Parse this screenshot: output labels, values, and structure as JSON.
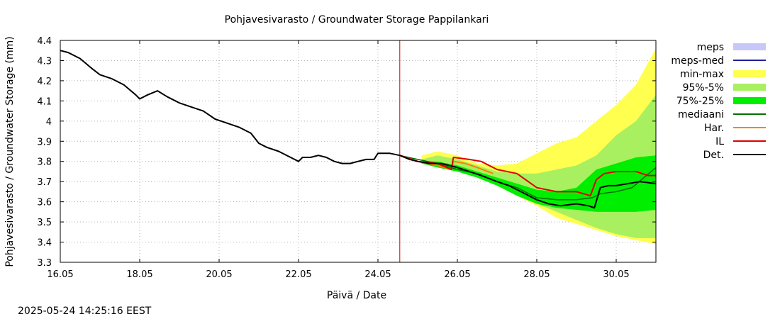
{
  "chart_data": {
    "type": "area",
    "title": "Pohjavesivarasto / Groundwater Storage   Pappilankari",
    "xlabel": "Päivä / Date",
    "ylabel": "Pohjavesivarasto / Groundwater Storage (mm)",
    "timestamp": "2025-05-24 14:25:16 EEST",
    "xlim": [
      16.0,
      31.0
    ],
    "ylim": [
      3.3,
      4.4
    ],
    "x_ticks": [
      {
        "value": 16,
        "label": "16.05"
      },
      {
        "value": 18,
        "label": "18.05"
      },
      {
        "value": 20,
        "label": "20.05"
      },
      {
        "value": 22,
        "label": "22.05"
      },
      {
        "value": 24,
        "label": "24.05"
      },
      {
        "value": 26,
        "label": "26.05"
      },
      {
        "value": 28,
        "label": "28.05"
      },
      {
        "value": 30,
        "label": "30.05"
      }
    ],
    "y_ticks": [
      {
        "value": 3.3,
        "label": "3.3"
      },
      {
        "value": 3.4,
        "label": "3.4"
      },
      {
        "value": 3.5,
        "label": "3.5"
      },
      {
        "value": 3.6,
        "label": "3.6"
      },
      {
        "value": 3.7,
        "label": "3.7"
      },
      {
        "value": 3.8,
        "label": "3.8"
      },
      {
        "value": 3.9,
        "label": "3.9"
      },
      {
        "value": 4.0,
        "label": "4"
      },
      {
        "value": 4.1,
        "label": "4.1"
      },
      {
        "value": 4.2,
        "label": "4.2"
      },
      {
        "value": 4.3,
        "label": "4.3"
      },
      {
        "value": 4.4,
        "label": "4.4"
      }
    ],
    "now_marker": {
      "x": 24.55,
      "color": "#cc0000"
    },
    "grid": true,
    "legend_position": "right",
    "legend": [
      {
        "name": "meps",
        "kind": "box",
        "color": "#c8c8f8"
      },
      {
        "name": "meps-med",
        "kind": "line",
        "color": "#2020a0"
      },
      {
        "name": "min-max",
        "kind": "box",
        "color": "#ffff50"
      },
      {
        "name": "95%-5%",
        "kind": "box",
        "color": "#a8f060"
      },
      {
        "name": "75%-25%",
        "kind": "box",
        "color": "#00ee00"
      },
      {
        "name": "mediaani",
        "kind": "line",
        "color": "#007000"
      },
      {
        "name": "Har.",
        "kind": "line",
        "color": "#ff8000"
      },
      {
        "name": "IL",
        "kind": "line",
        "color": "#e00000"
      },
      {
        "name": "Det.",
        "kind": "line",
        "color": "#000000"
      }
    ],
    "bands": [
      {
        "name": "min-max",
        "color": "#ffff50",
        "x": [
          25.1,
          25.5,
          26.0,
          26.5,
          27.0,
          27.5,
          28.0,
          28.5,
          29.0,
          29.5,
          30.0,
          30.5,
          31.0
        ],
        "upper": [
          3.83,
          3.85,
          3.83,
          3.79,
          3.78,
          3.79,
          3.84,
          3.89,
          3.92,
          4.0,
          4.08,
          4.18,
          4.36
        ],
        "lower": [
          3.79,
          3.77,
          3.75,
          3.72,
          3.68,
          3.63,
          3.58,
          3.52,
          3.49,
          3.46,
          3.43,
          3.41,
          3.39
        ]
      },
      {
        "name": "95%-5%",
        "color": "#a8f060",
        "x": [
          25.1,
          25.5,
          26.0,
          26.5,
          27.0,
          27.5,
          28.0,
          28.5,
          29.0,
          29.5,
          30.0,
          30.5,
          31.0
        ],
        "upper": [
          3.81,
          3.83,
          3.81,
          3.78,
          3.75,
          3.74,
          3.74,
          3.76,
          3.78,
          3.83,
          3.93,
          4.0,
          4.13
        ],
        "lower": [
          3.79,
          3.77,
          3.75,
          3.72,
          3.68,
          3.63,
          3.59,
          3.55,
          3.51,
          3.47,
          3.44,
          3.42,
          3.42
        ]
      },
      {
        "name": "75%-25%",
        "color": "#00ee00",
        "x": [
          25.1,
          25.5,
          26.0,
          26.5,
          27.0,
          27.5,
          28.0,
          28.5,
          29.0,
          29.5,
          30.0,
          30.5,
          31.0
        ],
        "upper": [
          3.8,
          3.8,
          3.78,
          3.75,
          3.72,
          3.69,
          3.66,
          3.65,
          3.67,
          3.76,
          3.79,
          3.82,
          3.83
        ],
        "lower": [
          3.79,
          3.77,
          3.75,
          3.72,
          3.68,
          3.63,
          3.59,
          3.57,
          3.56,
          3.55,
          3.55,
          3.55,
          3.56
        ]
      }
    ],
    "series": [
      {
        "name": "Det.",
        "color": "#000000",
        "x": [
          16.0,
          16.2,
          16.5,
          16.8,
          17.0,
          17.3,
          17.6,
          17.9,
          18.0,
          18.2,
          18.45,
          18.7,
          19.0,
          19.3,
          19.6,
          19.9,
          20.2,
          20.5,
          20.8,
          21.0,
          21.2,
          21.5,
          21.8,
          22.0,
          22.1,
          22.3,
          22.5,
          22.7,
          22.9,
          23.1,
          23.3,
          23.5,
          23.7,
          23.9,
          24.0,
          24.3,
          24.55,
          24.8,
          25.0,
          25.3,
          25.6,
          26.0,
          26.3,
          26.6,
          27.0,
          27.3,
          27.6,
          28.0,
          28.3,
          28.6,
          29.0,
          29.3,
          29.45,
          29.6,
          29.8,
          30.0,
          30.3,
          30.6,
          31.0
        ],
        "y": [
          4.35,
          4.34,
          4.31,
          4.26,
          4.23,
          4.21,
          4.18,
          4.13,
          4.11,
          4.13,
          4.15,
          4.12,
          4.09,
          4.07,
          4.05,
          4.01,
          3.99,
          3.97,
          3.94,
          3.89,
          3.87,
          3.85,
          3.82,
          3.8,
          3.82,
          3.82,
          3.83,
          3.82,
          3.8,
          3.79,
          3.79,
          3.8,
          3.81,
          3.81,
          3.84,
          3.84,
          3.83,
          3.81,
          3.8,
          3.79,
          3.79,
          3.77,
          3.75,
          3.73,
          3.7,
          3.68,
          3.65,
          3.61,
          3.59,
          3.58,
          3.59,
          3.58,
          3.57,
          3.67,
          3.68,
          3.68,
          3.69,
          3.7,
          3.69
        ]
      },
      {
        "name": "mediaani",
        "color": "#007000",
        "x": [
          24.55,
          25.0,
          25.5,
          26.0,
          26.5,
          27.0,
          27.5,
          28.0,
          28.5,
          29.0,
          29.4,
          29.6,
          30.0,
          30.4,
          30.7,
          31.0
        ],
        "y": [
          3.83,
          3.81,
          3.79,
          3.76,
          3.74,
          3.7,
          3.67,
          3.62,
          3.61,
          3.61,
          3.62,
          3.64,
          3.65,
          3.67,
          3.72,
          3.77
        ]
      },
      {
        "name": "Har.",
        "color": "#ff8000",
        "x": [
          24.55,
          25.0,
          25.5,
          25.85,
          25.9,
          26.2,
          26.5,
          26.9
        ],
        "y": [
          3.83,
          3.8,
          3.78,
          3.76,
          3.8,
          3.79,
          3.77,
          3.74
        ]
      },
      {
        "name": "IL",
        "color": "#e00000",
        "x": [
          24.55,
          25.0,
          25.5,
          25.85,
          25.9,
          26.3,
          26.6,
          27.0,
          27.5,
          28.0,
          28.5,
          29.0,
          29.35,
          29.5,
          29.7,
          30.0,
          30.5,
          30.8,
          31.0
        ],
        "y": [
          3.83,
          3.8,
          3.79,
          3.76,
          3.82,
          3.81,
          3.8,
          3.76,
          3.74,
          3.67,
          3.65,
          3.65,
          3.63,
          3.71,
          3.74,
          3.75,
          3.75,
          3.73,
          3.73
        ]
      }
    ]
  }
}
